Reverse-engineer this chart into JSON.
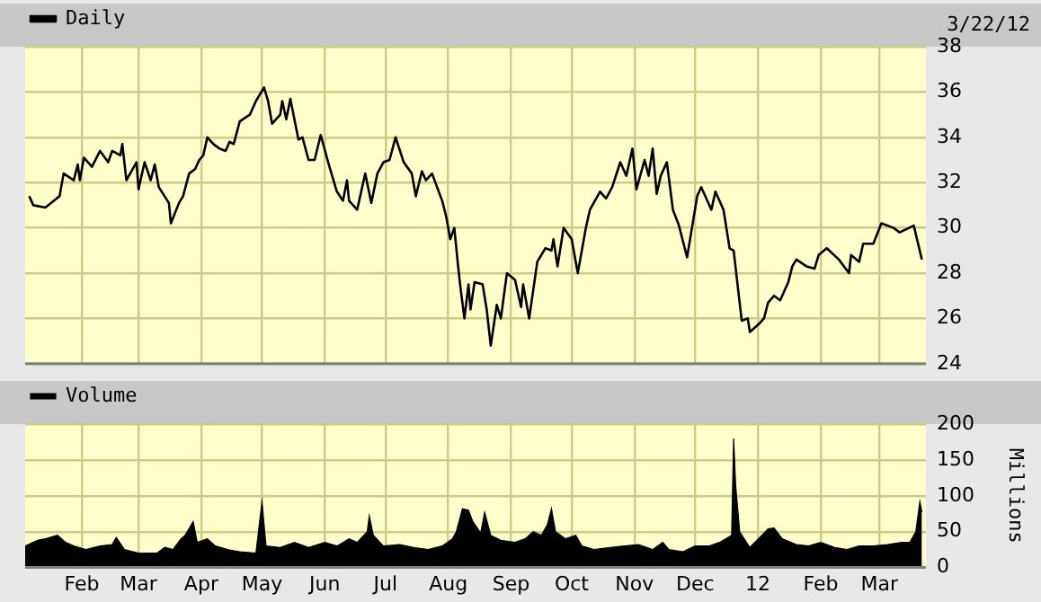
{
  "chart_data": [
    {
      "type": "line",
      "legend": "top left",
      "grid": true,
      "marker": "none",
      "tick_labels": "y",
      "annotations": [
        "3/22/12"
      ],
      "x": [
        "2011-01-06",
        "2011-01-08",
        "2011-01-14",
        "2011-01-21",
        "2011-01-23",
        "2011-01-28",
        "2011-01-30",
        "2011-01-31",
        "2011-02-02",
        "2011-02-06",
        "2011-02-10",
        "2011-02-14",
        "2011-02-16",
        "2011-02-20",
        "2011-02-21",
        "2011-02-23",
        "2011-02-28",
        "2011-03-01",
        "2011-03-04",
        "2011-03-07",
        "2011-03-09",
        "2011-03-11",
        "2011-03-16",
        "2011-03-17",
        "2011-03-21",
        "2011-03-23",
        "2011-03-26",
        "2011-03-29",
        "2011-03-31",
        "2011-04-02",
        "2011-04-04",
        "2011-04-07",
        "2011-04-10",
        "2011-04-13",
        "2011-04-15",
        "2011-04-17",
        "2011-04-20",
        "2011-04-25",
        "2011-04-28",
        "2011-05-02",
        "2011-05-04",
        "2011-05-06",
        "2011-05-10",
        "2011-05-11",
        "2011-05-13",
        "2011-05-15",
        "2011-05-19",
        "2011-05-21",
        "2011-05-24",
        "2011-05-27",
        "2011-05-30",
        "2011-06-03",
        "2011-06-07",
        "2011-06-10",
        "2011-06-12",
        "2011-06-13",
        "2011-06-17",
        "2011-06-21",
        "2011-06-24",
        "2011-06-27",
        "2011-06-30",
        "2011-07-03",
        "2011-07-06",
        "2011-07-10",
        "2011-07-14",
        "2011-07-16",
        "2011-07-19",
        "2011-07-21",
        "2011-07-24",
        "2011-07-29",
        "2011-07-31",
        "2011-08-02",
        "2011-08-04",
        "2011-08-06",
        "2011-08-07",
        "2011-08-09",
        "2011-08-11",
        "2011-08-12",
        "2011-08-14",
        "2011-08-18",
        "2011-08-20",
        "2011-08-22",
        "2011-08-25",
        "2011-08-27",
        "2011-08-30",
        "2011-09-03",
        "2011-09-06",
        "2011-09-07",
        "2011-09-10",
        "2011-09-14",
        "2011-09-18",
        "2011-09-21",
        "2011-09-22",
        "2011-09-24",
        "2011-09-27",
        "2011-10-01",
        "2011-10-04",
        "2011-10-08",
        "2011-10-10",
        "2011-10-15",
        "2011-10-18",
        "2011-10-21",
        "2011-10-25",
        "2011-10-28",
        "2011-10-31",
        "2011-11-02",
        "2011-11-06",
        "2011-11-08",
        "2011-11-10",
        "2011-11-12",
        "2011-11-14",
        "2011-11-17",
        "2011-11-20",
        "2011-11-23",
        "2011-11-27",
        "2011-12-02",
        "2011-12-04",
        "2011-12-09",
        "2011-12-11",
        "2011-12-15",
        "2011-12-18",
        "2011-12-20",
        "2011-12-24",
        "2011-12-27",
        "2011-12-28",
        "2012-01-02",
        "2012-01-04",
        "2012-01-06",
        "2012-01-09",
        "2012-01-12",
        "2012-01-16",
        "2012-01-18",
        "2012-01-20",
        "2012-01-25",
        "2012-01-29",
        "2012-01-31",
        "2012-02-04",
        "2012-02-10",
        "2012-02-15",
        "2012-02-16",
        "2012-02-20",
        "2012-02-22",
        "2012-02-27",
        "2012-03-02",
        "2012-03-08",
        "2012-03-11",
        "2012-03-18",
        "2012-03-22"
      ],
      "series": [
        {
          "name": "Daily",
          "color": "#000000",
          "values": [
            31.4,
            31.0,
            30.9,
            31.4,
            32.4,
            32.1,
            32.8,
            32.1,
            33.1,
            32.7,
            33.4,
            32.9,
            33.4,
            33.2,
            33.7,
            32.1,
            32.9,
            31.7,
            32.9,
            32.1,
            32.8,
            31.8,
            31.1,
            30.2,
            31.1,
            31.4,
            32.4,
            32.6,
            33.0,
            33.2,
            34.0,
            33.7,
            33.5,
            33.4,
            33.8,
            33.7,
            34.7,
            35.0,
            35.6,
            36.2,
            35.6,
            34.6,
            35.0,
            35.6,
            34.8,
            35.7,
            33.9,
            34.0,
            33.0,
            33.0,
            34.1,
            32.8,
            31.6,
            31.2,
            32.1,
            31.2,
            30.8,
            32.4,
            31.1,
            32.4,
            32.9,
            33.0,
            34.0,
            32.9,
            32.4,
            31.4,
            32.5,
            32.1,
            32.4,
            31.2,
            30.5,
            29.5,
            30.0,
            28.2,
            27.4,
            26.0,
            27.5,
            26.4,
            27.6,
            27.5,
            26.4,
            24.8,
            26.6,
            26.0,
            28.0,
            27.7,
            26.5,
            27.5,
            26.0,
            28.5,
            29.1,
            29.0,
            29.5,
            28.3,
            30.0,
            29.5,
            28.0,
            30.0,
            30.8,
            31.6,
            31.3,
            31.8,
            32.9,
            32.3,
            33.5,
            31.7,
            33.0,
            32.3,
            33.5,
            31.5,
            32.3,
            32.9,
            30.8,
            30.1,
            28.7,
            31.4,
            31.8,
            30.8,
            31.6,
            30.8,
            29.1,
            29.0,
            25.9,
            26.0,
            25.4,
            25.8,
            26.0,
            26.7,
            27.0,
            26.8,
            27.6,
            28.3,
            28.6,
            28.3,
            28.2,
            28.8,
            29.1,
            28.6,
            28.0,
            28.8,
            28.5,
            29.3,
            29.3,
            30.2,
            30.0,
            29.8,
            30.1,
            28.6
          ]
        }
      ],
      "xlim": [
        "2011-01-04",
        "2012-03-24"
      ],
      "xticks": [
        {
          "value": "2011-02-01",
          "label": null
        },
        {
          "value": "2011-03-01",
          "label": null
        },
        {
          "value": "2011-04-01",
          "label": null
        },
        {
          "value": "2011-05-01",
          "label": null
        },
        {
          "value": "2011-06-01",
          "label": null
        },
        {
          "value": "2011-07-01",
          "label": null
        },
        {
          "value": "2011-08-01",
          "label": null
        },
        {
          "value": "2011-09-01",
          "label": null
        },
        {
          "value": "2011-10-01",
          "label": null
        },
        {
          "value": "2011-11-01",
          "label": null
        },
        {
          "value": "2011-12-01",
          "label": null
        },
        {
          "value": "2012-01-01",
          "label": null
        },
        {
          "value": "2012-02-01",
          "label": null
        },
        {
          "value": "2012-03-01",
          "label": null
        }
      ],
      "ylim": [
        24,
        38
      ],
      "yticks": [
        24,
        26,
        28,
        30,
        32,
        34,
        36,
        38
      ]
    },
    {
      "type": "area",
      "legend": "top left",
      "grid": true,
      "ylabel": "Millions",
      "x": [
        "2011-01-04",
        "2011-01-10",
        "2011-01-14",
        "2011-01-20",
        "2011-01-24",
        "2011-01-28",
        "2011-02-03",
        "2011-02-10",
        "2011-02-16",
        "2011-02-18",
        "2011-02-22",
        "2011-03-01",
        "2011-03-10",
        "2011-03-14",
        "2011-03-18",
        "2011-03-22",
        "2011-03-24",
        "2011-03-28",
        "2011-03-30",
        "2011-04-04",
        "2011-04-08",
        "2011-04-14",
        "2011-04-20",
        "2011-04-28",
        "2011-05-01",
        "2011-05-03",
        "2011-05-10",
        "2011-05-17",
        "2011-05-24",
        "2011-06-01",
        "2011-06-07",
        "2011-06-13",
        "2011-06-17",
        "2011-06-22",
        "2011-06-23",
        "2011-06-25",
        "2011-06-30",
        "2011-07-08",
        "2011-07-15",
        "2011-07-22",
        "2011-07-29",
        "2011-08-03",
        "2011-08-05",
        "2011-08-08",
        "2011-08-11",
        "2011-08-13",
        "2011-08-17",
        "2011-08-19",
        "2011-08-22",
        "2011-08-27",
        "2011-09-03",
        "2011-09-08",
        "2011-09-12",
        "2011-09-16",
        "2011-09-19",
        "2011-09-21",
        "2011-09-23",
        "2011-09-28",
        "2011-10-03",
        "2011-10-06",
        "2011-10-12",
        "2011-10-20",
        "2011-10-27",
        "2011-11-03",
        "2011-11-10",
        "2011-11-15",
        "2011-11-18",
        "2011-11-25",
        "2011-12-01",
        "2011-12-08",
        "2011-12-13",
        "2011-12-19",
        "2011-12-20",
        "2011-12-21",
        "2011-12-23",
        "2011-12-28",
        "2012-01-03",
        "2012-01-06",
        "2012-01-09",
        "2012-01-13",
        "2012-01-20",
        "2012-01-26",
        "2012-02-01",
        "2012-02-08",
        "2012-02-14",
        "2012-02-20",
        "2012-02-27",
        "2012-03-05",
        "2012-03-12",
        "2012-03-16",
        "2012-03-19",
        "2012-03-21",
        "2012-03-22"
      ],
      "series": [
        {
          "name": "Volume",
          "color": "#000000",
          "values": [
            30,
            38,
            40,
            45,
            35,
            30,
            25,
            30,
            32,
            42,
            25,
            20,
            20,
            28,
            25,
            40,
            45,
            64,
            35,
            40,
            30,
            25,
            22,
            20,
            92,
            30,
            28,
            35,
            28,
            35,
            30,
            40,
            35,
            50,
            72,
            45,
            30,
            32,
            28,
            25,
            30,
            40,
            50,
            82,
            80,
            65,
            48,
            77,
            45,
            38,
            35,
            40,
            50,
            45,
            60,
            82,
            50,
            40,
            45,
            30,
            25,
            28,
            30,
            32,
            25,
            35,
            25,
            22,
            30,
            30,
            35,
            45,
            180,
            115,
            50,
            28,
            45,
            54,
            55,
            40,
            32,
            30,
            35,
            28,
            25,
            30,
            30,
            32,
            35,
            35,
            50,
            92,
            77
          ]
        }
      ],
      "xlim": [
        "2011-01-04",
        "2012-03-24"
      ],
      "xticks": [
        {
          "value": "2011-02-01",
          "label": "Feb"
        },
        {
          "value": "2011-03-01",
          "label": "Mar"
        },
        {
          "value": "2011-04-01",
          "label": "Apr"
        },
        {
          "value": "2011-05-01",
          "label": "May"
        },
        {
          "value": "2011-06-01",
          "label": "Jun"
        },
        {
          "value": "2011-07-01",
          "label": "Jul"
        },
        {
          "value": "2011-08-01",
          "label": "Aug"
        },
        {
          "value": "2011-09-01",
          "label": "Sep"
        },
        {
          "value": "2011-10-01",
          "label": "Oct"
        },
        {
          "value": "2011-11-01",
          "label": "Nov"
        },
        {
          "value": "2011-12-01",
          "label": "Dec"
        },
        {
          "value": "2012-01-01",
          "label": "12"
        },
        {
          "value": "2012-02-01",
          "label": "Feb"
        },
        {
          "value": "2012-03-01",
          "label": "Mar"
        }
      ],
      "ylim": [
        0,
        200
      ],
      "yticks": [
        0,
        50,
        100,
        150,
        200
      ]
    }
  ]
}
